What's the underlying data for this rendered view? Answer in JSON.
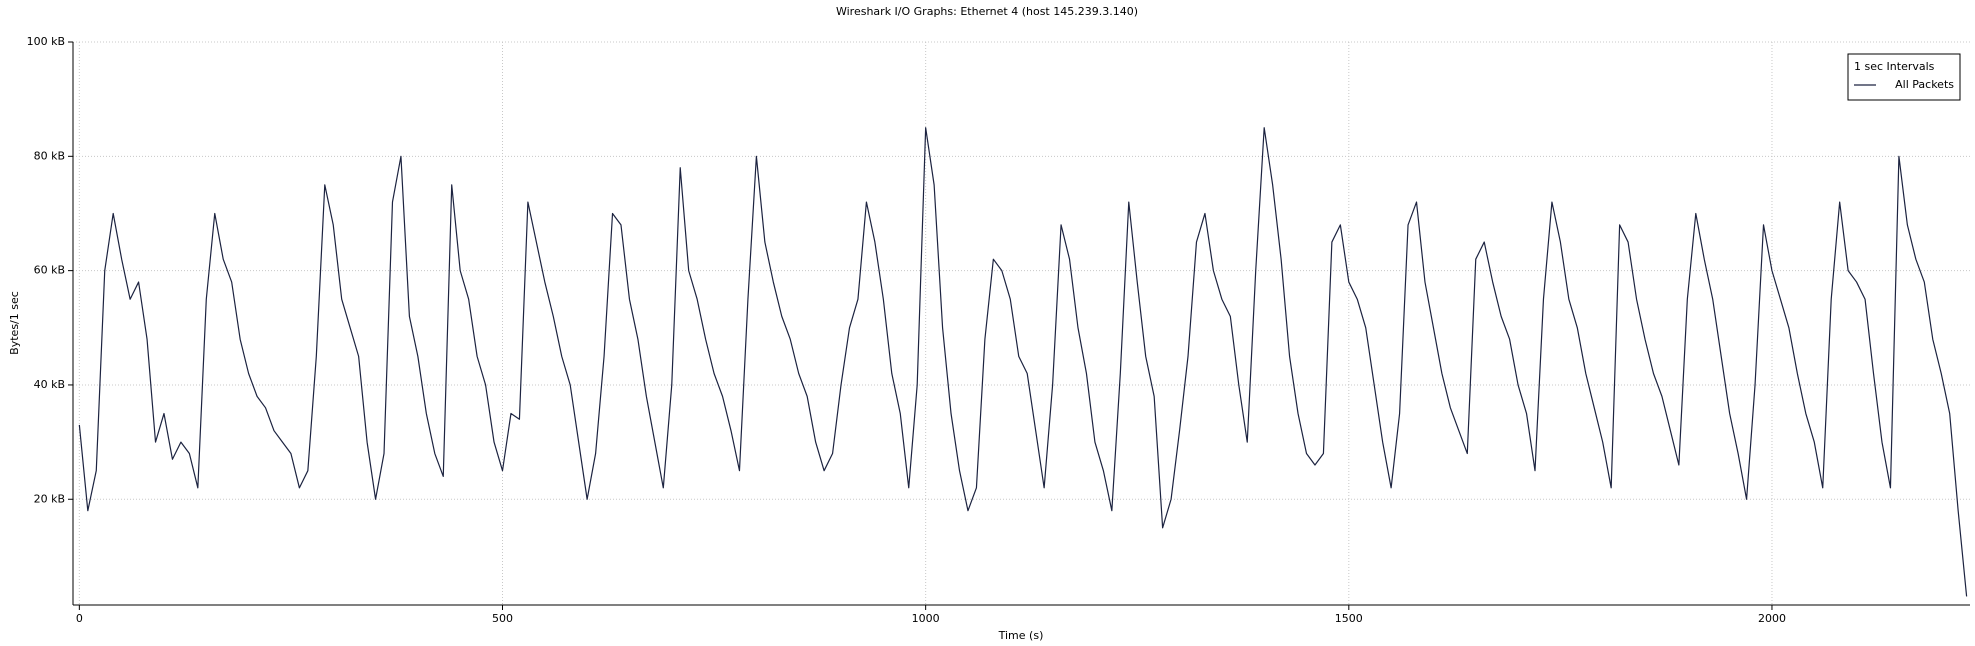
{
  "chart_data": {
    "type": "line",
    "title": "Wireshark I/O Graphs: Ethernet 4 (host 145.239.3.140)",
    "x_label": "Time (s)",
    "y_label": "Bytes/1 sec",
    "legend_title": "1 sec Intervals",
    "xlim": [
      -7.5,
      2234
    ],
    "ylim": [
      1.5,
      100
    ],
    "xticks": [
      0,
      500,
      1000,
      1500,
      2000
    ],
    "yticks": [
      {
        "value": 20,
        "label": "20 kB"
      },
      {
        "value": 40,
        "label": "40 kB"
      },
      {
        "value": 60,
        "label": "60 kB"
      },
      {
        "value": 80,
        "label": "80 kB"
      },
      {
        "value": 100,
        "label": "100 kB"
      }
    ],
    "grid": true,
    "legend": "upper right",
    "x": [
      0,
      10,
      20,
      30,
      40,
      50,
      60,
      70,
      80,
      90,
      100,
      110,
      120,
      130,
      140,
      150,
      160,
      170,
      180,
      190,
      200,
      210,
      220,
      230,
      240,
      250,
      260,
      270,
      280,
      290,
      300,
      310,
      320,
      330,
      340,
      350,
      360,
      370,
      380,
      390,
      400,
      410,
      420,
      430,
      440,
      450,
      460,
      470,
      480,
      490,
      500,
      510,
      520,
      530,
      540,
      550,
      560,
      570,
      580,
      590,
      600,
      610,
      620,
      630,
      640,
      650,
      660,
      670,
      680,
      690,
      700,
      710,
      720,
      730,
      740,
      750,
      760,
      770,
      780,
      790,
      800,
      810,
      820,
      830,
      840,
      850,
      860,
      870,
      880,
      890,
      900,
      910,
      920,
      930,
      940,
      950,
      960,
      970,
      980,
      990,
      1000,
      1010,
      1020,
      1030,
      1040,
      1050,
      1060,
      1070,
      1080,
      1090,
      1100,
      1110,
      1120,
      1130,
      1140,
      1150,
      1160,
      1170,
      1180,
      1190,
      1200,
      1210,
      1220,
      1230,
      1240,
      1250,
      1260,
      1270,
      1280,
      1290,
      1300,
      1310,
      1320,
      1330,
      1340,
      1350,
      1360,
      1370,
      1380,
      1390,
      1400,
      1410,
      1420,
      1430,
      1440,
      1450,
      1460,
      1470,
      1480,
      1490,
      1500,
      1510,
      1520,
      1530,
      1540,
      1550,
      1560,
      1570,
      1580,
      1590,
      1600,
      1610,
      1620,
      1630,
      1640,
      1650,
      1660,
      1670,
      1680,
      1690,
      1700,
      1710,
      1720,
      1730,
      1740,
      1750,
      1760,
      1770,
      1780,
      1790,
      1800,
      1810,
      1820,
      1830,
      1840,
      1850,
      1860,
      1870,
      1880,
      1890,
      1900,
      1910,
      1920,
      1930,
      1940,
      1950,
      1960,
      1970,
      1980,
      1990,
      2000,
      2010,
      2020,
      2030,
      2040,
      2050,
      2060,
      2070,
      2080,
      2090,
      2100,
      2110,
      2120,
      2130,
      2140,
      2150,
      2160,
      2170,
      2180,
      2190,
      2200,
      2210,
      2220,
      2230
    ],
    "series": [
      {
        "name": "All Packets",
        "color": "#1c2340",
        "values": [
          33,
          18,
          25,
          60,
          70,
          62,
          55,
          58,
          48,
          30,
          35,
          27,
          30,
          28,
          22,
          55,
          70,
          62,
          58,
          48,
          42,
          38,
          36,
          32,
          30,
          28,
          22,
          25,
          45,
          75,
          68,
          55,
          50,
          45,
          30,
          20,
          28,
          72,
          80,
          52,
          45,
          35,
          28,
          24,
          75,
          60,
          55,
          45,
          40,
          30,
          25,
          35,
          34,
          72,
          65,
          58,
          52,
          45,
          40,
          30,
          20,
          28,
          45,
          70,
          68,
          55,
          48,
          38,
          30,
          22,
          40,
          78,
          60,
          55,
          48,
          42,
          38,
          32,
          25,
          55,
          80,
          65,
          58,
          52,
          48,
          42,
          38,
          30,
          25,
          28,
          40,
          50,
          55,
          72,
          65,
          55,
          42,
          35,
          22,
          40,
          85,
          75,
          50,
          35,
          25,
          18,
          22,
          48,
          62,
          60,
          55,
          45,
          42,
          32,
          22,
          40,
          68,
          62,
          50,
          42,
          30,
          25,
          18,
          42,
          72,
          58,
          45,
          38,
          15,
          20,
          32,
          45,
          65,
          70,
          60,
          55,
          52,
          40,
          30,
          60,
          85,
          75,
          62,
          45,
          35,
          28,
          26,
          28,
          65,
          68,
          58,
          55,
          50,
          40,
          30,
          22,
          35,
          68,
          72,
          58,
          50,
          42,
          36,
          32,
          28,
          62,
          65,
          58,
          52,
          48,
          40,
          35,
          25,
          55,
          72,
          65,
          55,
          50,
          42,
          36,
          30,
          22,
          68,
          65,
          55,
          48,
          42,
          38,
          32,
          26,
          55,
          70,
          62,
          55,
          45,
          35,
          28,
          20,
          40,
          68,
          60,
          55,
          50,
          42,
          35,
          30,
          22,
          55,
          72,
          60,
          58,
          55,
          42,
          30,
          22,
          80,
          68,
          62,
          58,
          48,
          42,
          35,
          18,
          3
        ]
      }
    ]
  }
}
